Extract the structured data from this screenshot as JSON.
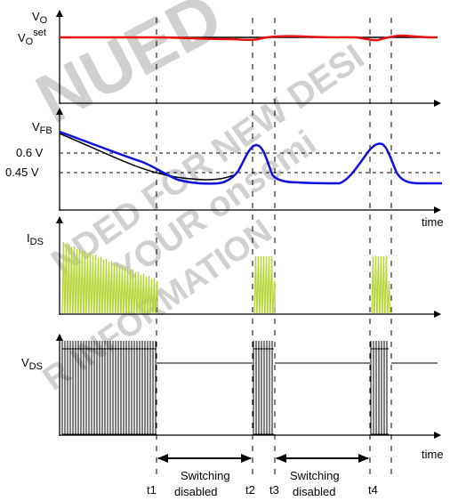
{
  "watermark": {
    "line1": "NUED",
    "line2": "NDED FOR NEW DESI",
    "line3": "YOUR onsemi",
    "line4": "R INFORMATION"
  },
  "labels": {
    "vo": "V",
    "vo_sub": "O",
    "voset": "V",
    "voset_sub": "O",
    "voset_sup": "set",
    "vfb": "V",
    "vfb_sub": "FB",
    "v06": "0.6 V",
    "v045": "0.45 V",
    "ids": "I",
    "ids_sub": "DS",
    "vds": "V",
    "vds_sub": "DS",
    "time1": "time",
    "time2": "time",
    "t1": "t1",
    "t2": "t2",
    "t3": "t3",
    "t4": "t4",
    "sw1_line1": "Switching",
    "sw1_line2": "disabled",
    "sw2_line1": "Switching",
    "sw2_line2": "disabled"
  },
  "colors": {
    "vo_trace": "#e81010",
    "vfb_trace": "#1010e0",
    "ids_trace": "#b7d43a",
    "vds_trace": "#000000",
    "axis": "#000000"
  }
}
